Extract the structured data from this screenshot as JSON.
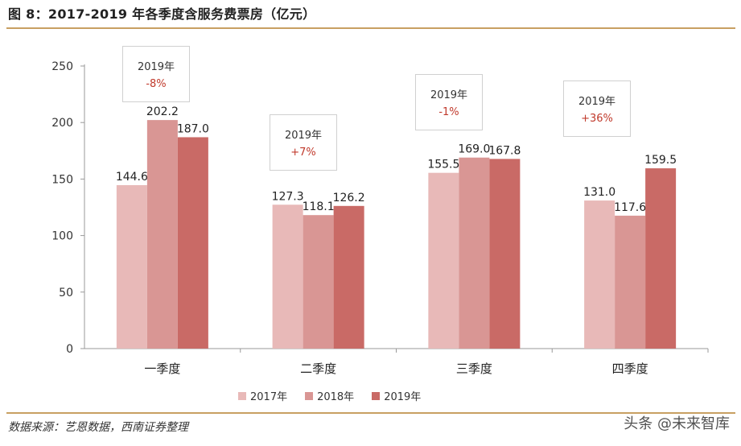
{
  "title": "图 8：2017-2019 年各季度含服务费票房（亿元）",
  "source": "数据来源：艺恩数据，西南证券整理",
  "watermark": "头条 @未来智库",
  "colors": {
    "s2017": "#e8b9b8",
    "s2018": "#d99694",
    "s2019": "#c96a66",
    "rule": "#c8a062",
    "annotation": "#c0392b"
  },
  "annotations": [
    {
      "year": "2019年",
      "change": "-8%"
    },
    {
      "year": "2019年",
      "change": "+7%"
    },
    {
      "year": "2019年",
      "change": "-1%"
    },
    {
      "year": "2019年",
      "change": "+36%"
    }
  ],
  "chart_data": {
    "type": "bar",
    "categories": [
      "一季度",
      "二季度",
      "三季度",
      "四季度"
    ],
    "series": [
      {
        "name": "2017年",
        "values": [
          144.6,
          127.3,
          155.5,
          131.0
        ]
      },
      {
        "name": "2018年",
        "values": [
          202.2,
          118.1,
          169.0,
          117.6
        ]
      },
      {
        "name": "2019年",
        "values": [
          187.0,
          126.2,
          167.8,
          159.5
        ]
      }
    ],
    "ylim": [
      0,
      250
    ],
    "yticks": [
      0,
      50,
      100,
      150,
      200,
      250
    ],
    "grid": false,
    "legend": "bottom"
  }
}
